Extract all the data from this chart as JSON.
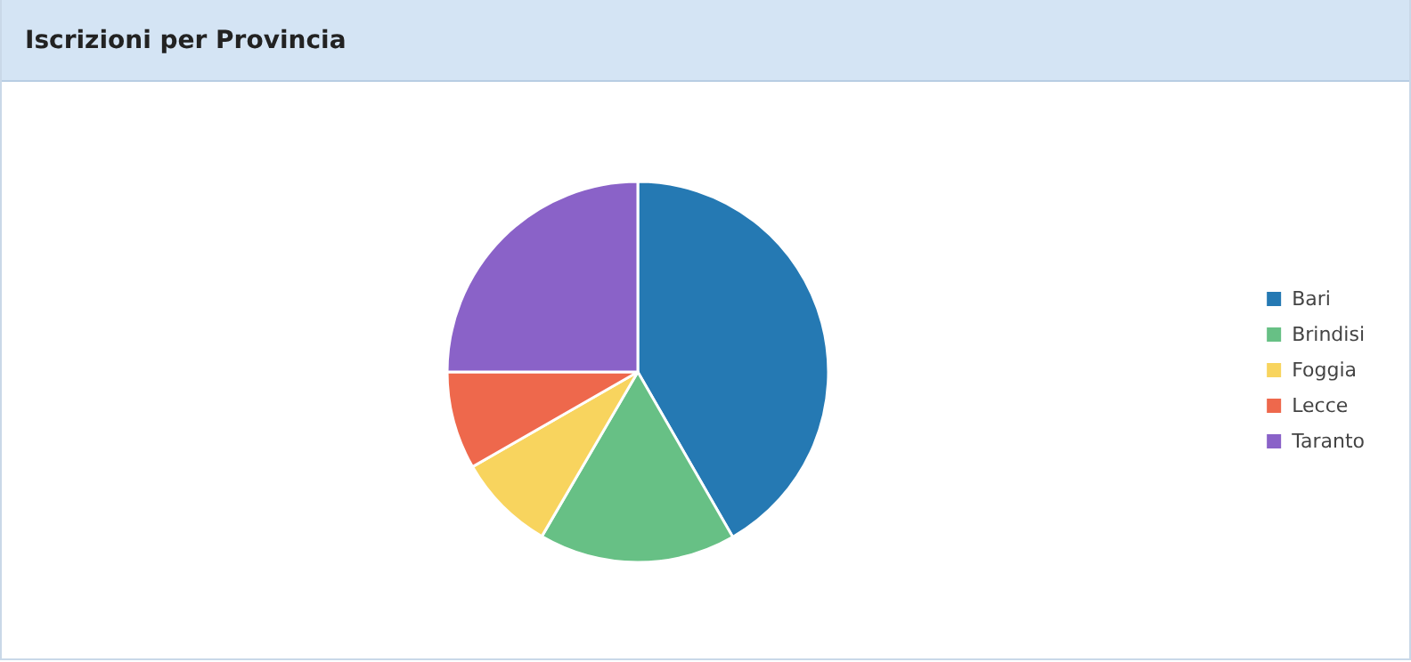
{
  "chart_data": {
    "type": "pie",
    "title": "Iscrizioni per Provincia",
    "categories": [
      "Bari",
      "Brindisi",
      "Foggia",
      "Lecce",
      "Taranto"
    ],
    "values": [
      41.7,
      16.7,
      8.3,
      8.3,
      25.0
    ],
    "colors": [
      "#2579b3",
      "#67c085",
      "#f8d45e",
      "#ee684c",
      "#8a62c8"
    ],
    "legend": "right"
  }
}
